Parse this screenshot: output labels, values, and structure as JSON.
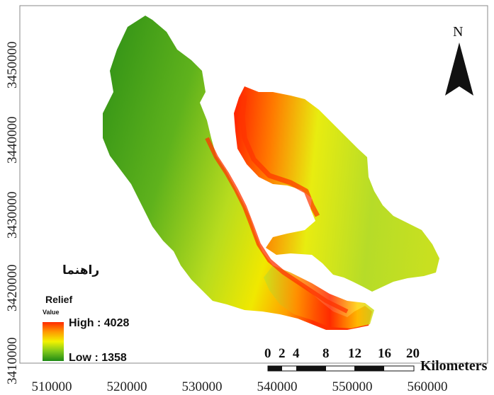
{
  "map": {
    "y_ticks": [
      "3450000",
      "3440000",
      "3430000",
      "3420000",
      "3410000"
    ],
    "x_ticks": [
      "510000",
      "520000",
      "530000",
      "540000",
      "550000",
      "560000"
    ],
    "north_label": "N",
    "legend": {
      "title": "راهنما",
      "layer_name": "Relief",
      "value_label": "Value",
      "high_label": "High : 4028",
      "low_label": "Low : 1358",
      "high_value": 4028,
      "low_value": 1358,
      "colors": [
        "#ff2a00",
        "#ff9a00",
        "#f2f200",
        "#7fc81a",
        "#1e8a16"
      ]
    },
    "scale_bar": {
      "labels": [
        "0",
        "2",
        "4",
        "8",
        "12",
        "16",
        "20"
      ],
      "unit": "Kilometers"
    }
  }
}
